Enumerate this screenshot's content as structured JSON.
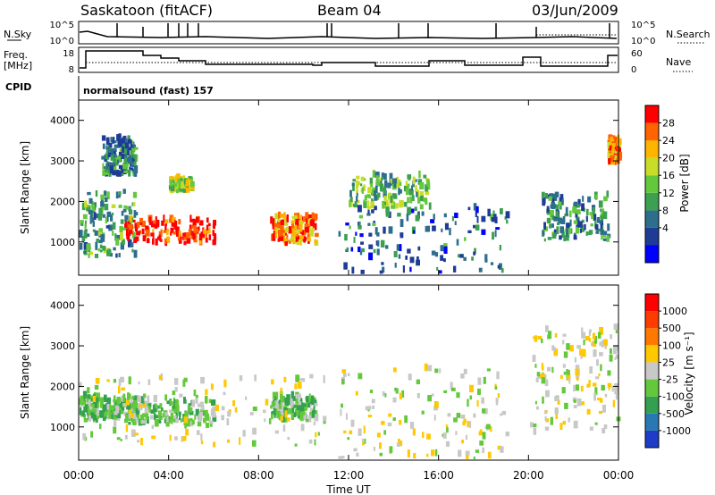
{
  "header": {
    "station": "Saskatoon (fitACF)",
    "beam": "Beam 04",
    "date": "03/Jun/2009"
  },
  "nsky_panel": {
    "left_label": "N.Sky",
    "right_label": "N.Search",
    "left_ticks": [
      "10^5",
      "10^0"
    ],
    "right_ticks": [
      "10^5",
      "10^0"
    ]
  },
  "freq_panel": {
    "left_label_line1": "Freq.",
    "left_label_line2": "[MHz]",
    "right_label": "Nave",
    "left_ticks": [
      "18",
      "8"
    ],
    "right_ticks": [
      "60",
      "0"
    ]
  },
  "cpid": {
    "label": "CPID",
    "value": "normalsound (fast) 157"
  },
  "chart_data": [
    {
      "type": "heatmap",
      "title": "",
      "ylabel": "Slant Range [km]",
      "xlabel": "",
      "ylim": [
        180,
        4500
      ],
      "xlim": [
        0,
        24
      ],
      "y_ticks": [
        "4000",
        "3000",
        "2000",
        "1000"
      ],
      "colorbar": {
        "label": "Power [dB]",
        "ticks": [
          "28",
          "24",
          "20",
          "16",
          "12",
          "8",
          "4"
        ],
        "colors": [
          "#0000ff",
          "#1e3c96",
          "#2d6e8c",
          "#3ca050",
          "#64c83c",
          "#c8dc28",
          "#ffb400",
          "#ff6400",
          "#ff0000"
        ],
        "range": [
          0,
          30
        ]
      },
      "regions": [
        {
          "t": [
            0.0,
            2.5
          ],
          "r": [
            600,
            2200
          ],
          "v": 12
        },
        {
          "t": [
            1.0,
            2.5
          ],
          "r": [
            2600,
            3500
          ],
          "v": 10
        },
        {
          "t": [
            2.0,
            6.0
          ],
          "r": [
            900,
            1500
          ],
          "v": 28
        },
        {
          "t": [
            4.0,
            5.0
          ],
          "r": [
            2200,
            2500
          ],
          "v": 16
        },
        {
          "t": [
            8.5,
            10.5
          ],
          "r": [
            900,
            1600
          ],
          "v": 24
        },
        {
          "t": [
            12.0,
            15.5
          ],
          "r": [
            1800,
            2600
          ],
          "v": 14
        },
        {
          "t": [
            11.5,
            19.0
          ],
          "r": [
            200,
            1800
          ],
          "v": 8
        },
        {
          "t": [
            20.5,
            23.5
          ],
          "r": [
            1000,
            2100
          ],
          "v": 10
        },
        {
          "t": [
            23.5,
            24.0
          ],
          "r": [
            2900,
            3500
          ],
          "v": 24
        }
      ]
    },
    {
      "type": "heatmap",
      "title": "",
      "ylabel": "Slant Range [km]",
      "xlabel": "Time UT",
      "ylim": [
        180,
        4500
      ],
      "xlim": [
        0,
        24
      ],
      "y_ticks": [
        "4000",
        "3000",
        "2000",
        "1000"
      ],
      "x_ticks": [
        "00:00",
        "04:00",
        "08:00",
        "12:00",
        "16:00",
        "20:00",
        "00:00"
      ],
      "colorbar": {
        "label": "Velocity [m s⁻¹]",
        "ticks": [
          "1000",
          "500",
          "100",
          "25",
          "-25",
          "-100",
          "-500",
          "-1000"
        ],
        "colors": [
          "#1e3cc8",
          "#2878b4",
          "#32a050",
          "#64c83c",
          "#c8c8c8",
          "#ffc800",
          "#ff7800",
          "#ff3c00",
          "#ff0000"
        ],
        "range": [
          -1000,
          1000
        ]
      },
      "regions": [
        {
          "t": [
            0.0,
            2.5
          ],
          "r": [
            1100,
            1700
          ],
          "v": -300
        },
        {
          "t": [
            2.0,
            6.0
          ],
          "r": [
            1000,
            1600
          ],
          "v": -250
        },
        {
          "t": [
            8.5,
            10.5
          ],
          "r": [
            1100,
            1700
          ],
          "v": -280
        },
        {
          "t": [
            0.0,
            11.0
          ],
          "r": [
            500,
            2200
          ],
          "v": 0
        },
        {
          "t": [
            11.5,
            19.0
          ],
          "r": [
            200,
            2400
          ],
          "v": 0
        },
        {
          "t": [
            20.0,
            24.0
          ],
          "r": [
            800,
            3400
          ],
          "v": 0
        }
      ]
    }
  ]
}
